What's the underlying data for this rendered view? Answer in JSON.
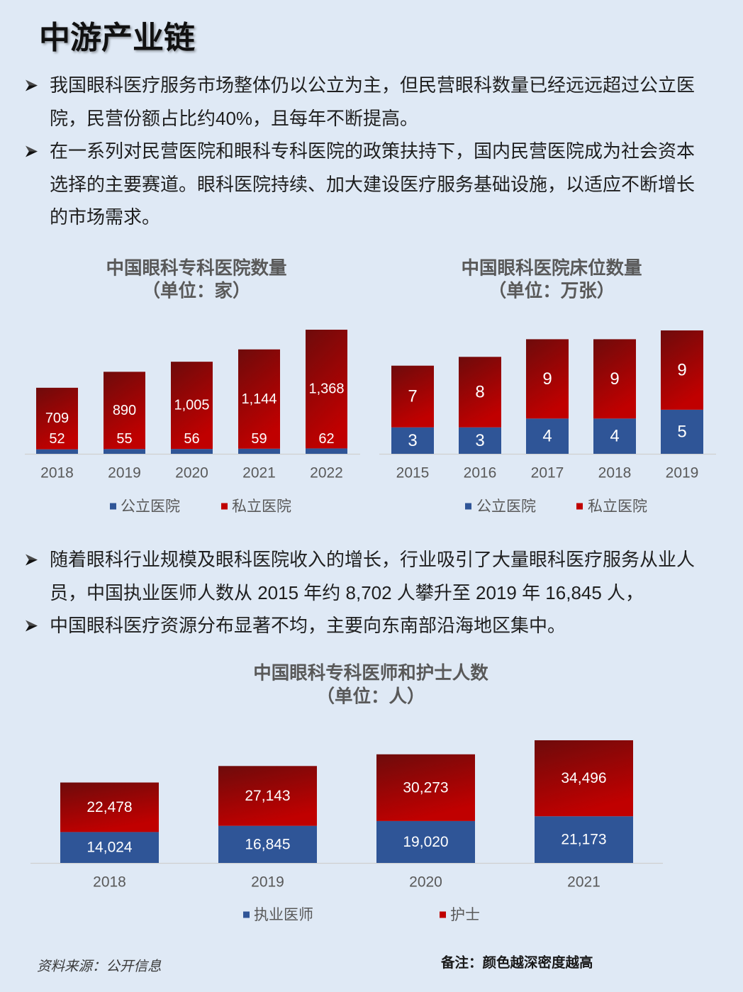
{
  "page": {
    "title": "中游产业链"
  },
  "bullet_icon": "arrow-bullet-icon",
  "bullets_top": [
    "我国眼科医疗服务市场整体仍以公立为主，但民营眼科数量已经远远超过公立医院，民营份额占比约40%，且每年不断提高。",
    "在一系列对民营医院和眼科专科医院的政策扶持下，国内民营医院成为社会资本选择的主要赛道。眼科医院持续、加大建设医疗服务基础设施，以适应不断增长的市场需求。"
  ],
  "bullets_middle": [
    "随着眼科行业规模及眼科医院收入的增长，行业吸引了大量眼科医疗服务从业人员，中国执业医师人数从 2015 年约 8,702 人攀升至 2019 年 16,845 人，",
    "中国眼科医疗资源分布显著不均，主要向东南部沿海地区集中。"
  ],
  "colors": {
    "public": "#2f5597",
    "private": "#c00000",
    "private_dark": "#6e0b0b"
  },
  "chart_data": [
    {
      "type": "bar",
      "stacked": true,
      "title": "中国眼科专科医院数量",
      "subtitle": "（单位：家）",
      "categories": [
        "2018",
        "2019",
        "2020",
        "2021",
        "2022"
      ],
      "series": [
        {
          "name": "公立医院",
          "values": [
            52,
            55,
            56,
            59,
            62
          ],
          "data_labels": [
            "52",
            "55",
            "56",
            "59",
            "62"
          ]
        },
        {
          "name": "私立医院",
          "values": [
            709,
            890,
            1005,
            1144,
            1368
          ],
          "data_labels": [
            "709",
            "890",
            "1,005",
            "1,144",
            "1,368"
          ]
        }
      ],
      "legend": "bottom",
      "grid": false
    },
    {
      "type": "bar",
      "stacked": true,
      "title": "中国眼科医院床位数量",
      "subtitle": "（单位：万张）",
      "categories": [
        "2015",
        "2016",
        "2017",
        "2018",
        "2019"
      ],
      "series": [
        {
          "name": "公立医院",
          "values": [
            3,
            3,
            4,
            4,
            5
          ],
          "data_labels": [
            "3",
            "3",
            "4",
            "4",
            "5"
          ]
        },
        {
          "name": "私立医院",
          "values": [
            7,
            8,
            9,
            9,
            9
          ],
          "data_labels": [
            "7",
            "8",
            "9",
            "9",
            "9"
          ]
        }
      ],
      "legend": "bottom",
      "grid": false
    },
    {
      "type": "bar",
      "stacked": true,
      "title": "中国眼科专科医师和护士人数",
      "subtitle": "（单位：人）",
      "categories": [
        "2018",
        "2019",
        "2020",
        "2021"
      ],
      "series": [
        {
          "name": "执业医师",
          "values": [
            14024,
            16845,
            19020,
            21173
          ],
          "data_labels": [
            "14,024",
            "16,845",
            "19,020",
            "21,173"
          ]
        },
        {
          "name": "护士",
          "values": [
            22478,
            27143,
            30273,
            34496
          ],
          "data_labels": [
            "22,478",
            "27,143",
            "30,273",
            "34,496"
          ]
        }
      ],
      "legend": "bottom",
      "grid": false
    }
  ],
  "footer": {
    "source": "资料来源：公开信息",
    "note": "备注：颜色越深密度越高"
  }
}
